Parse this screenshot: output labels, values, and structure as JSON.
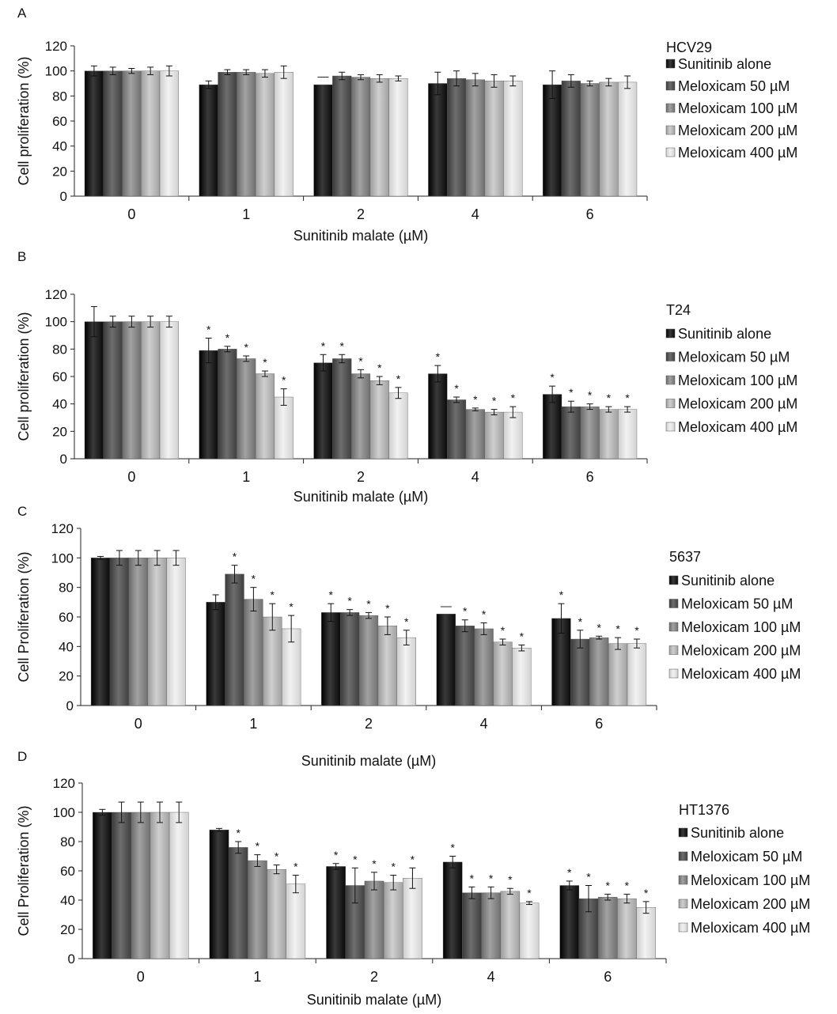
{
  "legend_labels": [
    "Sunitinib alone",
    "Meloxicam 50 µM",
    "Meloxicam 100 µM",
    "Meloxicam 200 µM",
    "Meloxicam 400 µM"
  ],
  "series_colors": [
    "#111111",
    "#4d4d4d",
    "#7f7f7f",
    "#b0b0b0",
    "#dcdcdc"
  ],
  "chart_data": [
    {
      "type": "bar",
      "panel_label": "A",
      "cell_line": "HCV29",
      "xlabel": "Sunitinib malate (µM)",
      "ylabel": "Cell proliferation (%)",
      "categories": [
        "0",
        "1",
        "2",
        "4",
        "6"
      ],
      "ylim": [
        0,
        120
      ],
      "yticks": [
        "0",
        "20",
        "40",
        "60",
        "80",
        "100",
        "120"
      ],
      "series": [
        {
          "name": "Sunitinib alone",
          "values": [
            100,
            89,
            89,
            90,
            89
          ],
          "errors": [
            4,
            3,
            0,
            9,
            11
          ],
          "sig": [
            "",
            "",
            "—",
            "",
            ""
          ]
        },
        {
          "name": "Meloxicam 50 µM",
          "values": [
            100,
            99,
            96,
            94,
            92
          ],
          "errors": [
            3,
            2,
            3,
            6,
            5
          ],
          "sig": [
            "",
            "",
            "",
            "",
            ""
          ]
        },
        {
          "name": "Meloxicam 100 µM",
          "values": [
            100,
            99,
            95,
            93,
            90
          ],
          "errors": [
            2,
            2,
            2,
            5,
            2
          ],
          "sig": [
            "",
            "",
            "",
            "",
            ""
          ]
        },
        {
          "name": "Meloxicam 200 µM",
          "values": [
            100,
            98,
            94,
            92,
            91
          ],
          "errors": [
            3,
            3,
            3,
            5,
            3
          ],
          "sig": [
            "",
            "",
            "",
            "",
            ""
          ]
        },
        {
          "name": "Meloxicam 400 µM",
          "values": [
            100,
            99,
            94,
            92,
            91
          ],
          "errors": [
            4,
            5,
            2,
            4,
            5
          ],
          "sig": [
            "",
            "",
            "",
            "",
            ""
          ]
        }
      ]
    },
    {
      "type": "bar",
      "panel_label": "B",
      "cell_line": "T24",
      "xlabel": "Sunitinib malate (µM)",
      "ylabel": "Cell proliferation (%)",
      "categories": [
        "0",
        "1",
        "2",
        "4",
        "6"
      ],
      "ylim": [
        0,
        120
      ],
      "yticks": [
        "0",
        "20",
        "40",
        "60",
        "80",
        "100",
        "120"
      ],
      "series": [
        {
          "name": "Sunitinib alone",
          "values": [
            100,
            79,
            70,
            62,
            47
          ],
          "errors": [
            11,
            9,
            6,
            6,
            6
          ],
          "sig": [
            "",
            "*",
            "*",
            "*",
            "*"
          ]
        },
        {
          "name": "Meloxicam 50 µM",
          "values": [
            100,
            80,
            73,
            43,
            38
          ],
          "errors": [
            4,
            2,
            3,
            2,
            4
          ],
          "sig": [
            "",
            "*",
            "*",
            "*",
            "*"
          ]
        },
        {
          "name": "Meloxicam 100 µM",
          "values": [
            100,
            73,
            62,
            36,
            38
          ],
          "errors": [
            4,
            2,
            3,
            1,
            2
          ],
          "sig": [
            "",
            "*",
            "*",
            "*",
            "*"
          ]
        },
        {
          "name": "Meloxicam 200 µM",
          "values": [
            100,
            62,
            57,
            34,
            36
          ],
          "errors": [
            4,
            2,
            3,
            2,
            2
          ],
          "sig": [
            "",
            "*",
            "*",
            "*",
            "*"
          ]
        },
        {
          "name": "Meloxicam 400 µM",
          "values": [
            100,
            45,
            48,
            34,
            36
          ],
          "errors": [
            4,
            6,
            4,
            4,
            2
          ],
          "sig": [
            "",
            "*",
            "*",
            "*",
            "*"
          ]
        }
      ]
    },
    {
      "type": "bar",
      "panel_label": "C",
      "cell_line": "5637",
      "xlabel": "Sunitinib malate (µM)",
      "ylabel": "Cell Proliferation (%)",
      "categories": [
        "0",
        "1",
        "2",
        "4",
        "6"
      ],
      "ylim": [
        0,
        120
      ],
      "yticks": [
        "0",
        "20",
        "40",
        "60",
        "80",
        "100",
        "120"
      ],
      "series": [
        {
          "name": "Sunitinib alone",
          "values": [
            100,
            70,
            63,
            62,
            59
          ],
          "errors": [
            1,
            5,
            6,
            0,
            10
          ],
          "sig": [
            "",
            "",
            "*",
            "—",
            "*"
          ]
        },
        {
          "name": "Meloxicam 50 µM",
          "values": [
            100,
            89,
            63,
            54,
            45
          ],
          "errors": [
            5,
            6,
            2,
            4,
            6
          ],
          "sig": [
            "",
            "*",
            "*",
            "*",
            "*"
          ]
        },
        {
          "name": "Meloxicam 100 µM",
          "values": [
            100,
            72,
            61,
            52,
            46
          ],
          "errors": [
            5,
            8,
            2,
            4,
            1
          ],
          "sig": [
            "",
            "*",
            "*",
            "*",
            "*"
          ]
        },
        {
          "name": "Meloxicam 200 µM",
          "values": [
            100,
            60,
            54,
            43,
            42
          ],
          "errors": [
            5,
            9,
            6,
            2,
            4
          ],
          "sig": [
            "",
            "*",
            "*",
            "*",
            "*"
          ]
        },
        {
          "name": "Meloxicam 400 µM",
          "values": [
            100,
            52,
            46,
            39,
            42
          ],
          "errors": [
            5,
            9,
            5,
            2,
            3
          ],
          "sig": [
            "",
            "*",
            "*",
            "*",
            "*"
          ]
        }
      ]
    },
    {
      "type": "bar",
      "panel_label": "D",
      "cell_line": "HT1376",
      "xlabel": "Sunitinib malate (µM)",
      "ylabel": "Cell Proliferation (%)",
      "categories": [
        "0",
        "1",
        "2",
        "4",
        "6"
      ],
      "ylim": [
        0,
        120
      ],
      "yticks": [
        "0",
        "20",
        "40",
        "60",
        "80",
        "100",
        "120"
      ],
      "series": [
        {
          "name": "Sunitinib alone",
          "values": [
            100,
            88,
            63,
            66,
            50
          ],
          "errors": [
            2,
            1,
            2,
            4,
            3
          ],
          "sig": [
            "",
            "",
            "*",
            "*",
            "*"
          ]
        },
        {
          "name": "Meloxicam 50 µM",
          "values": [
            100,
            76,
            50,
            45,
            41
          ],
          "errors": [
            7,
            4,
            12,
            4,
            9
          ],
          "sig": [
            "",
            "*",
            "*",
            "*",
            "*"
          ]
        },
        {
          "name": "Meloxicam 100 µM",
          "values": [
            100,
            67,
            53,
            45,
            42
          ],
          "errors": [
            7,
            4,
            6,
            4,
            2
          ],
          "sig": [
            "",
            "*",
            "*",
            "*",
            "*"
          ]
        },
        {
          "name": "Meloxicam 200 µM",
          "values": [
            100,
            61,
            52,
            46,
            41
          ],
          "errors": [
            7,
            3,
            5,
            2,
            3
          ],
          "sig": [
            "",
            "*",
            "*",
            "*",
            "*"
          ]
        },
        {
          "name": "Meloxicam 400 µM",
          "values": [
            100,
            51,
            55,
            38,
            35
          ],
          "errors": [
            7,
            6,
            7,
            1,
            4
          ],
          "sig": [
            "",
            "*",
            "*",
            "*",
            "*"
          ]
        }
      ]
    }
  ]
}
